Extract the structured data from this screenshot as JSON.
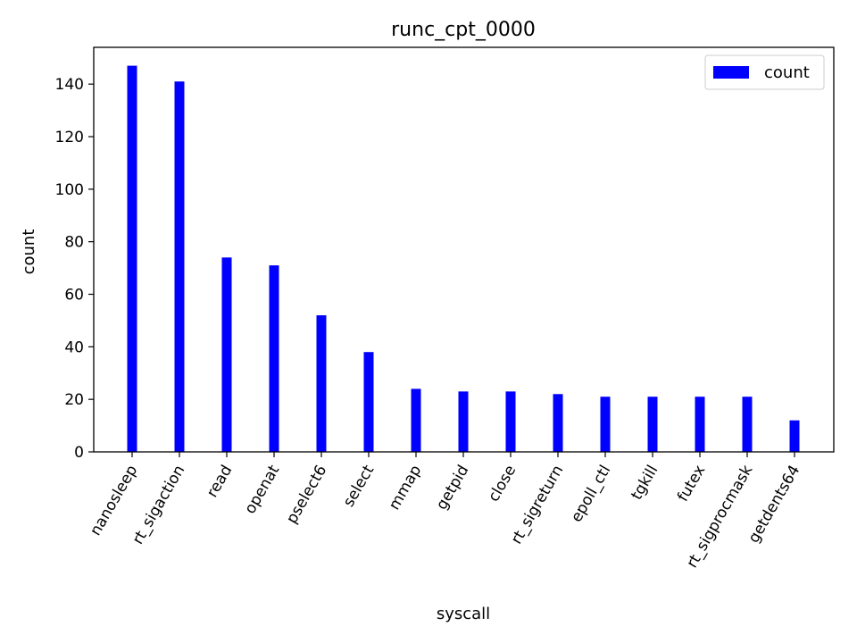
{
  "chart_data": {
    "type": "bar",
    "title": "runc_cpt_0000",
    "xlabel": "syscall",
    "ylabel": "count",
    "categories": [
      "nanosleep",
      "rt_sigaction",
      "read",
      "openat",
      "pselect6",
      "select",
      "mmap",
      "getpid",
      "close",
      "rt_sigreturn",
      "epoll_ctl",
      "tgkill",
      "futex",
      "rt_sigprocmask",
      "getdents64"
    ],
    "series": [
      {
        "name": "count",
        "color": "#0000ff",
        "values": [
          147,
          141,
          74,
          71,
          52,
          38,
          24,
          23,
          23,
          22,
          21,
          21,
          21,
          21,
          12
        ]
      }
    ],
    "ylim": [
      0,
      154
    ],
    "yticks": [
      0,
      20,
      40,
      60,
      80,
      100,
      120,
      140
    ],
    "grid": false,
    "legend_position": "top-right"
  }
}
